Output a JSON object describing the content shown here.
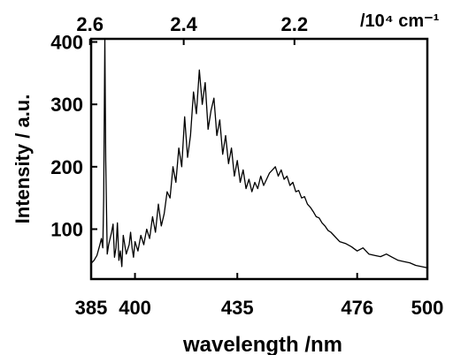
{
  "chart_data": {
    "type": "line",
    "xlabel": "wavelength /nm",
    "ylabel": "Intensity / a.u.",
    "top_axis_label": "/10⁴ cm⁻¹",
    "xlim": [
      385,
      500
    ],
    "ylim": [
      20,
      405
    ],
    "x_ticks": [
      385,
      400,
      435,
      476,
      500
    ],
    "y_ticks": [
      100,
      200,
      300,
      400
    ],
    "top_ticks": [
      {
        "label": "2.6",
        "wavenumber": 2.6
      },
      {
        "label": "2.4",
        "wavenumber": 2.4
      },
      {
        "label": "2.2",
        "wavenumber": 2.2
      }
    ],
    "grid": false,
    "series": [
      {
        "x": [
          385,
          386,
          387,
          388,
          388.5,
          389,
          389.3,
          389.7,
          390,
          390.5,
          391,
          392,
          392.5,
          393,
          393.5,
          394,
          394.5,
          395,
          395.5,
          396,
          397,
          398,
          398.5,
          399,
          399.5,
          400,
          401,
          402,
          403,
          404,
          405,
          406,
          407,
          408,
          409,
          410,
          411,
          412,
          413,
          414,
          415,
          416,
          417,
          418,
          419,
          420,
          421,
          422,
          423,
          424,
          425,
          426,
          427,
          428,
          429,
          430,
          431,
          432,
          433,
          434,
          435,
          436,
          437,
          438,
          439,
          440,
          441,
          442,
          443,
          444,
          445,
          446,
          447,
          448,
          449,
          450,
          451,
          452,
          453,
          454,
          455,
          456,
          457,
          458,
          459,
          460,
          461,
          462,
          463,
          464,
          465,
          466,
          467,
          468,
          469,
          470,
          472,
          474,
          476,
          478,
          480,
          482,
          484,
          486,
          488,
          490,
          492,
          494,
          496,
          498,
          500
        ],
        "y": [
          45,
          50,
          58,
          75,
          85,
          70,
          150,
          405,
          210,
          60,
          75,
          95,
          108,
          55,
          70,
          110,
          50,
          65,
          40,
          90,
          60,
          75,
          95,
          70,
          55,
          80,
          65,
          90,
          75,
          100,
          85,
          120,
          95,
          140,
          105,
          125,
          160,
          150,
          200,
          175,
          230,
          200,
          280,
          215,
          250,
          320,
          285,
          355,
          300,
          335,
          260,
          290,
          310,
          250,
          275,
          220,
          250,
          205,
          230,
          185,
          210,
          175,
          195,
          165,
          180,
          160,
          175,
          165,
          185,
          170,
          180,
          190,
          195,
          200,
          185,
          195,
          180,
          185,
          170,
          175,
          160,
          162,
          150,
          152,
          140,
          135,
          128,
          120,
          118,
          110,
          105,
          98,
          95,
          90,
          85,
          80,
          77,
          72,
          65,
          70,
          60,
          58,
          56,
          60,
          55,
          50,
          48,
          46,
          42,
          40,
          38
        ]
      }
    ]
  }
}
